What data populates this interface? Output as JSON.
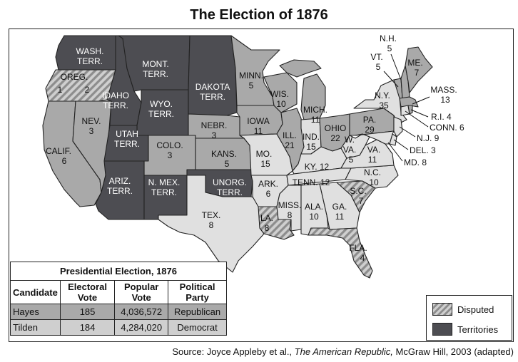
{
  "title": "The Election of 1876",
  "colors": {
    "hayes": "#a9a9a9",
    "tilden": "#e0e0e0",
    "territories": "#4d4d52",
    "disputed_light": "#cfcfcf",
    "disputed_dark": "#8d8d8d"
  },
  "map_labels": {
    "wash": "WASH.",
    "wash2": "TERR.",
    "oreg": "OREG.",
    "oreg_d": "1",
    "oreg_r": "2",
    "calif": "CALIF.",
    "calif_v": "6",
    "nev": "NEV.",
    "nev_v": "3",
    "idaho": "IDAHO",
    "idaho2": "TERR.",
    "mont": "MONT.",
    "mont2": "TERR.",
    "wyo": "WYO.",
    "wyo2": "TERR.",
    "utah": "UTAH",
    "utah2": "TERR.",
    "colo": "COLO.",
    "colo_v": "3",
    "ariz": "ARIZ.",
    "ariz2": "TERR.",
    "nmex": "N. MEX.",
    "nmex2": "TERR.",
    "dakota": "DAKOTA",
    "dakota2": "TERR.",
    "nebr": "NEBR.",
    "nebr_v": "3",
    "kans": "KANS.",
    "kans_v": "5",
    "unorg": "UNORG.",
    "unorg2": "TERR.",
    "tex": "TEX.",
    "tex_v": "8",
    "minn": "MINN.",
    "minn_v": "5",
    "iowa": "IOWA",
    "iowa_v": "11",
    "mo": "MO.",
    "mo_v": "15",
    "ark": "ARK.",
    "ark_v": "6",
    "la": "LA.",
    "la_v": "8",
    "wis": "WIS.",
    "wis_v": "10",
    "ill": "ILL.",
    "ill_v": "21",
    "mich": "MICH.",
    "mich_v": "11",
    "ind": "IND.",
    "ind_v": "15",
    "ohio": "OHIO",
    "ohio_v": "22",
    "ky": "KY. 12",
    "tenn": "TENN. 12",
    "miss": "MISS.",
    "miss_v": "8",
    "ala": "ALA.",
    "ala_v": "10",
    "ga": "GA.",
    "ga_v": "11",
    "fla": "FLA.",
    "fla_v": "4",
    "sc": "S.C.",
    "sc_v": "7",
    "nc": "N.C.",
    "nc_v": "10",
    "va": "VA.",
    "va_v": "11",
    "wva": "W.",
    "wva2": "VA.",
    "wva_v": "5",
    "pa": "PA.",
    "pa_v": "29",
    "ny": "N.Y.",
    "ny_v": "35",
    "vt": "VT.",
    "vt_v": "5",
    "nh": "N.H.",
    "nh_v": "5",
    "me": "ME.",
    "me_v": "7",
    "mass": "MASS.",
    "mass_v": "13",
    "ri": "R.I. 4",
    "conn": "CONN. 6",
    "nj": "N.J. 9",
    "del": "DEL. 3",
    "md": "MD. 8"
  },
  "table": {
    "caption": "Presidential Election, 1876",
    "headers": [
      "Candidate",
      "Electoral Vote",
      "Popular Vote",
      "Political Party"
    ],
    "rows": [
      {
        "candidate": "Hayes",
        "electoral": "185",
        "popular": "4,036,572",
        "party": "Republican"
      },
      {
        "candidate": "Tilden",
        "electoral": "184",
        "popular": "4,284,020",
        "party": "Democrat"
      }
    ]
  },
  "legend": {
    "disputed": "Disputed",
    "territories": "Territories"
  },
  "source": {
    "prefix": "Source: Joyce Appleby et al., ",
    "book": "The American Republic,",
    "suffix": " McGraw Hill, 2003 (adapted)"
  }
}
